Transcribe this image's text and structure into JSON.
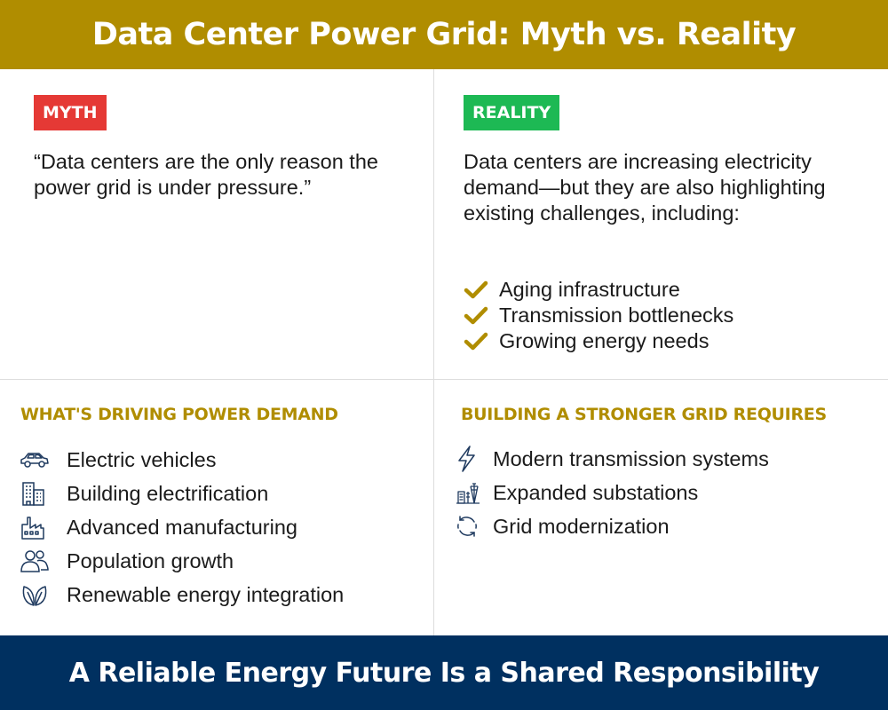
{
  "header": {
    "title": "Data Center Power Grid: Myth vs. Reality"
  },
  "myth": {
    "badge": "MYTH",
    "badge_color": "#e53935",
    "quote": "“Data centers are the only reason the power grid is under pressure.”"
  },
  "reality": {
    "badge": "REALITY",
    "badge_color": "#1db954",
    "text": "Data centers are increasing electricity demand—but they are also highlighting existing challenges, including:",
    "items": [
      {
        "icon": "check-icon",
        "label": "Aging infrastructure"
      },
      {
        "icon": "check-icon",
        "label": "Transmission bottlenecks"
      },
      {
        "icon": "check-icon",
        "label": "Growing energy needs"
      }
    ]
  },
  "drivers": {
    "title": "WHAT'S DRIVING POWER DEMAND",
    "items": [
      {
        "icon": "car-icon",
        "label": "Electric vehicles"
      },
      {
        "icon": "building-icon",
        "label": "Building electrification"
      },
      {
        "icon": "factory-icon",
        "label": "Advanced manufacturing"
      },
      {
        "icon": "people-icon",
        "label": "Population growth"
      },
      {
        "icon": "leaf-icon",
        "label": "Renewable energy integration"
      }
    ]
  },
  "requires": {
    "title": "BUILDING A STRONGER GRID REQUIRES",
    "items": [
      {
        "icon": "lightning-icon",
        "label": "Modern transmission systems"
      },
      {
        "icon": "substation-icon",
        "label": "Expanded substations"
      },
      {
        "icon": "refresh-icon",
        "label": "Grid modernization"
      }
    ]
  },
  "footer": {
    "text": "A Reliable Energy Future Is a Shared Responsibility"
  },
  "colors": {
    "gold": "#b08d00",
    "navy": "#003060",
    "icon_navy": "#1f3a5f"
  }
}
